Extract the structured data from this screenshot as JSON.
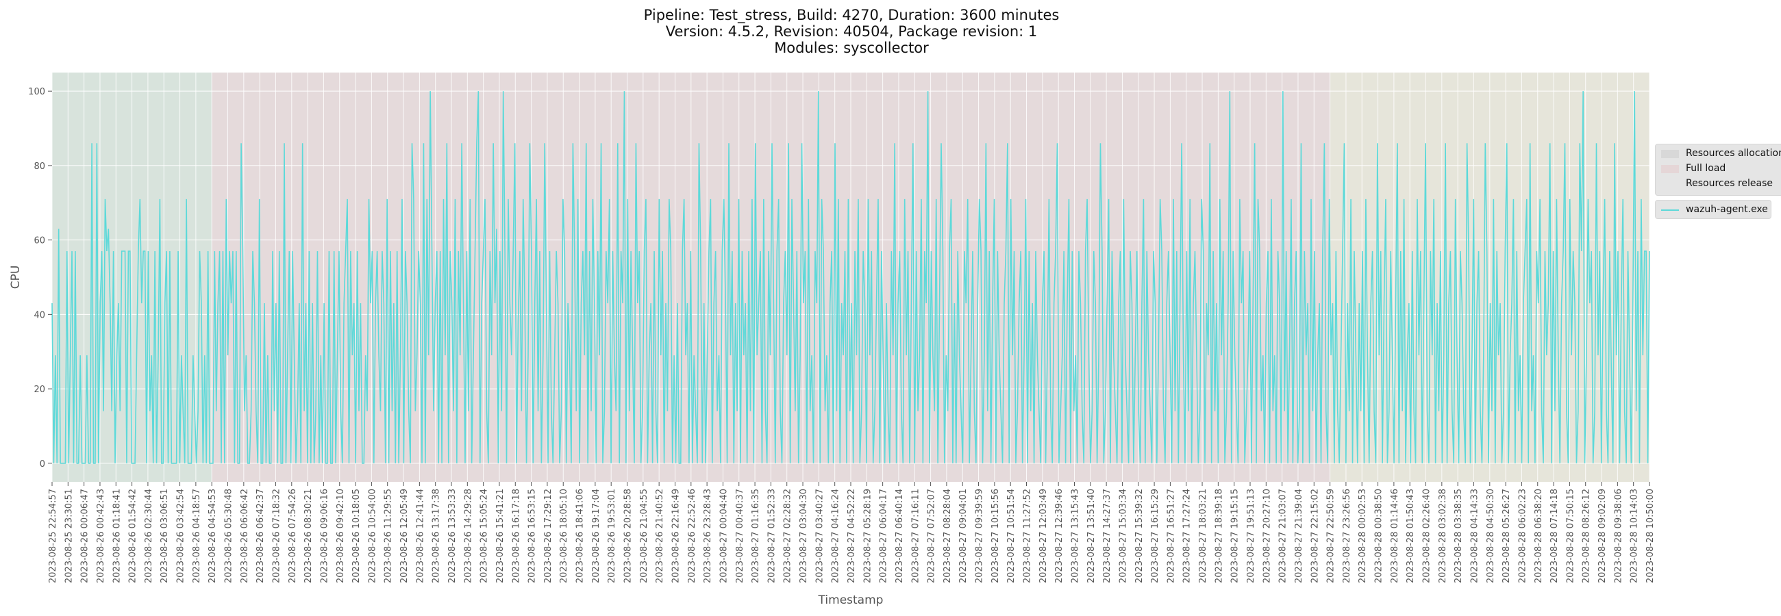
{
  "chart_data": {
    "type": "line",
    "title": "Pipeline: Test_stress, Build: 4270, Duration: 3600 minutes",
    "subtitle_lines": [
      "Version: 4.5.2, Revision: 40504, Package revision: 1",
      "Modules: syscollector"
    ],
    "xlabel": "Timestamp",
    "ylabel": "CPU",
    "ylim": [
      -5,
      105
    ],
    "y_ticks": [
      0,
      20,
      40,
      60,
      80,
      100
    ],
    "grid": true,
    "legend_placement": "right-outside",
    "x_tick_labels": [
      "2023-08-25 22:54:57",
      "2023-08-25 23:30:51",
      "2023-08-26 00:06:47",
      "2023-08-26 00:42:43",
      "2023-08-26 01:18:41",
      "2023-08-26 01:54:42",
      "2023-08-26 02:30:44",
      "2023-08-26 03:06:51",
      "2023-08-26 03:42:54",
      "2023-08-26 04:18:57",
      "2023-08-26 04:54:53",
      "2023-08-26 05:30:48",
      "2023-08-26 06:06:42",
      "2023-08-26 06:42:37",
      "2023-08-26 07:18:32",
      "2023-08-26 07:54:26",
      "2023-08-26 08:30:21",
      "2023-08-26 09:06:16",
      "2023-08-26 09:42:10",
      "2023-08-26 10:18:05",
      "2023-08-26 10:54:00",
      "2023-08-26 11:29:55",
      "2023-08-26 12:05:49",
      "2023-08-26 12:41:44",
      "2023-08-26 13:17:38",
      "2023-08-26 13:53:33",
      "2023-08-26 14:29:28",
      "2023-08-26 15:05:24",
      "2023-08-26 15:41:21",
      "2023-08-26 16:17:18",
      "2023-08-26 16:53:15",
      "2023-08-26 17:29:12",
      "2023-08-26 18:05:10",
      "2023-08-26 18:41:06",
      "2023-08-26 19:17:04",
      "2023-08-26 19:53:01",
      "2023-08-26 20:28:58",
      "2023-08-26 21:04:55",
      "2023-08-26 21:40:52",
      "2023-08-26 22:16:49",
      "2023-08-26 22:52:46",
      "2023-08-26 23:28:43",
      "2023-08-27 00:04:40",
      "2023-08-27 00:40:37",
      "2023-08-27 01:16:35",
      "2023-08-27 01:52:33",
      "2023-08-27 02:28:32",
      "2023-08-27 03:04:30",
      "2023-08-27 03:40:27",
      "2023-08-27 04:16:24",
      "2023-08-27 04:52:22",
      "2023-08-27 05:28:19",
      "2023-08-27 06:04:17",
      "2023-08-27 06:40:14",
      "2023-08-27 07:16:11",
      "2023-08-27 07:52:07",
      "2023-08-27 08:28:04",
      "2023-08-27 09:04:01",
      "2023-08-27 09:39:59",
      "2023-08-27 10:15:56",
      "2023-08-27 10:51:54",
      "2023-08-27 11:27:52",
      "2023-08-27 12:03:49",
      "2023-08-27 12:39:46",
      "2023-08-27 13:15:43",
      "2023-08-27 13:51:40",
      "2023-08-27 14:27:37",
      "2023-08-27 15:03:34",
      "2023-08-27 15:39:32",
      "2023-08-27 16:15:29",
      "2023-08-27 16:51:27",
      "2023-08-27 17:27:24",
      "2023-08-27 18:03:21",
      "2023-08-27 18:39:18",
      "2023-08-27 19:15:15",
      "2023-08-27 19:51:13",
      "2023-08-27 20:27:10",
      "2023-08-27 21:03:07",
      "2023-08-27 21:39:04",
      "2023-08-27 22:15:02",
      "2023-08-27 22:50:59",
      "2023-08-27 23:26:56",
      "2023-08-28 00:02:53",
      "2023-08-28 00:38:50",
      "2023-08-28 01:14:46",
      "2023-08-28 01:50:43",
      "2023-08-28 02:26:40",
      "2023-08-28 03:02:38",
      "2023-08-28 03:38:35",
      "2023-08-28 04:14:33",
      "2023-08-28 04:50:30",
      "2023-08-28 05:26:27",
      "2023-08-28 06:02:23",
      "2023-08-28 06:38:20",
      "2023-08-28 07:14:18",
      "2023-08-28 07:50:15",
      "2023-08-28 08:26:12",
      "2023-08-28 09:02:09",
      "2023-08-28 09:38:06",
      "2023-08-28 10:14:03",
      "2023-08-28 10:50:00"
    ],
    "regions": [
      {
        "name": "Resources allocation",
        "start": "2023-08-25 22:54:57",
        "end": "2023-08-26 04:54:53",
        "color": "#d8e3dc"
      },
      {
        "name": "Full load",
        "start": "2023-08-26 04:54:53",
        "end": "2023-08-27 22:50:59",
        "color": "#e5dadb"
      },
      {
        "name": "Resources release",
        "start": "2023-08-27 22:50:59",
        "end": "2023-08-28 10:50:00",
        "color": "#e6e5da"
      }
    ],
    "series": [
      {
        "name": "wazuh-agent.exe",
        "color": "#5dd9d9",
        "y": [
          43,
          0,
          29,
          0,
          63,
          0,
          0,
          0,
          0,
          57,
          0,
          29,
          57,
          0,
          57,
          0,
          0,
          29,
          0,
          0,
          0,
          29,
          0,
          0,
          86,
          0,
          0,
          86,
          0,
          43,
          57,
          14,
          71,
          57,
          63,
          43,
          14,
          57,
          0,
          29,
          43,
          14,
          57,
          57,
          57,
          0,
          57,
          57,
          0,
          0,
          0,
          29,
          57,
          71,
          43,
          57,
          57,
          0,
          57,
          14,
          29,
          0,
          57,
          0,
          29,
          71,
          0,
          0,
          43,
          57,
          0,
          57,
          0,
          0,
          0,
          0,
          57,
          0,
          29,
          14,
          0,
          71,
          0,
          0,
          0,
          29,
          14,
          0,
          14,
          57,
          43,
          0,
          29,
          0,
          57,
          0,
          0,
          0,
          57,
          14,
          43,
          57,
          0,
          57,
          0,
          71,
          29,
          57,
          43,
          57,
          0,
          57,
          0,
          0,
          86,
          57,
          14,
          29,
          0,
          0,
          14,
          57,
          43,
          14,
          0,
          71,
          0,
          0,
          43,
          0,
          29,
          0,
          0,
          57,
          14,
          43,
          0,
          57,
          0,
          0,
          86,
          0,
          29,
          57,
          0,
          57,
          29,
          0,
          14,
          43,
          0,
          86,
          14,
          43,
          0,
          57,
          0,
          43,
          0,
          14,
          57,
          0,
          29,
          0,
          43,
          0,
          0,
          57,
          0,
          0,
          57,
          0,
          29,
          57,
          14,
          0,
          43,
          57,
          71,
          0,
          57,
          29,
          43,
          0,
          57,
          14,
          43,
          0,
          0,
          29,
          14,
          71,
          43,
          57,
          0,
          43,
          57,
          29,
          14,
          57,
          43,
          0,
          71,
          0,
          57,
          14,
          43,
          0,
          57,
          0,
          29,
          71,
          0,
          57,
          43,
          14,
          0,
          86,
          71,
          14,
          29,
          57,
          43,
          0,
          86,
          0,
          71,
          29,
          100,
          57,
          14,
          43,
          57,
          0,
          57,
          0,
          71,
          29,
          86,
          0,
          57,
          43,
          14,
          71,
          0,
          57,
          29,
          86,
          43,
          0,
          57,
          14,
          71,
          0,
          29,
          57,
          86,
          100,
          0,
          43,
          57,
          71,
          14,
          0,
          57,
          29,
          86,
          43,
          63,
          0,
          57,
          14,
          100,
          57,
          0,
          71,
          43,
          29,
          57,
          86,
          0,
          38,
          57,
          14,
          71,
          43,
          0,
          29,
          86,
          57,
          0,
          43,
          71,
          14,
          57,
          0,
          29,
          86,
          43,
          0,
          57,
          14,
          0,
          29,
          57,
          43,
          0,
          14,
          71,
          57,
          0,
          43,
          29,
          0,
          86,
          57,
          14,
          71,
          0,
          43,
          57,
          29,
          86,
          0,
          57,
          14,
          71,
          43,
          0,
          57,
          29,
          86,
          0,
          14,
          57,
          43,
          71,
          0,
          57,
          29,
          14,
          86,
          0,
          57,
          43,
          100,
          0,
          71,
          14,
          57,
          29,
          0,
          86,
          43,
          57,
          0,
          14,
          57,
          71,
          0,
          29,
          43,
          0,
          57,
          14,
          0,
          71,
          29,
          57,
          0,
          43,
          14,
          71,
          57,
          0,
          29,
          0,
          43,
          0,
          0,
          57,
          71,
          29,
          43,
          0,
          57,
          0,
          29,
          14,
          0,
          86,
          57,
          0,
          43,
          0,
          29,
          57,
          71,
          0,
          43,
          57,
          14,
          29,
          0,
          57,
          71,
          43,
          0,
          86,
          29,
          57,
          0,
          43,
          14,
          71,
          0,
          57,
          29,
          43,
          0,
          57,
          14,
          71,
          0,
          86,
          29,
          43,
          57,
          0,
          71,
          14,
          0,
          57,
          29,
          86,
          43,
          0,
          57,
          71,
          14,
          0,
          43,
          57,
          29,
          86,
          0,
          71,
          43,
          14,
          57,
          0,
          29,
          86,
          43,
          57,
          0,
          71,
          14,
          29,
          0,
          57,
          43,
          100,
          0,
          71,
          57,
          14,
          29,
          0,
          43,
          57,
          0,
          86,
          14,
          71,
          0,
          43,
          29,
          57,
          0,
          71,
          14,
          43,
          0,
          57,
          29,
          71,
          0,
          14,
          57,
          43,
          0,
          71,
          29,
          57,
          0,
          14,
          43,
          71,
          0,
          57,
          29,
          0,
          43,
          14,
          0,
          57,
          29,
          86,
          0,
          43,
          57,
          14,
          0,
          71,
          29,
          57,
          0,
          43,
          86,
          0,
          57,
          14,
          29,
          71,
          0,
          57,
          43,
          100,
          0,
          57,
          29,
          14,
          71,
          0,
          43,
          86,
          57,
          0,
          29,
          14,
          57,
          71,
          0,
          43,
          0,
          57,
          29,
          14,
          0,
          57,
          43,
          71,
          0,
          29,
          57,
          14,
          0,
          43,
          71,
          57,
          0,
          29,
          86,
          14,
          57,
          0,
          43,
          71,
          0,
          57,
          29,
          14,
          0,
          43,
          57,
          86,
          0,
          71,
          29,
          57,
          0,
          14,
          43,
          57,
          0,
          29,
          71,
          0,
          57,
          14,
          43,
          0,
          57,
          29,
          14,
          0,
          43,
          57,
          0,
          29,
          71,
          14,
          0,
          43,
          57,
          86,
          0,
          14,
          29,
          57,
          0,
          43,
          71,
          0,
          57,
          14,
          29,
          0,
          57,
          43,
          14,
          0,
          57,
          71,
          29,
          0,
          14,
          57,
          43,
          0,
          29,
          86,
          57,
          0,
          14,
          43,
          71,
          0,
          57,
          29,
          14,
          0,
          43,
          57,
          0,
          71,
          29,
          14,
          0,
          57,
          43,
          0,
          29,
          57,
          14,
          0,
          43,
          71,
          0,
          57,
          29,
          14,
          0,
          57,
          43,
          0,
          29,
          71,
          57,
          14,
          0,
          43,
          57,
          29,
          0,
          71,
          14,
          57,
          0,
          43,
          86,
          29,
          0,
          57,
          14,
          71,
          0,
          43,
          57,
          29,
          0,
          14,
          71,
          57,
          0,
          43,
          29,
          86,
          0,
          57,
          14,
          43,
          0,
          71,
          29,
          57,
          0,
          14,
          43,
          100,
          0,
          57,
          29,
          14,
          0,
          71,
          43,
          57,
          0,
          14,
          29,
          57,
          0,
          43,
          86,
          0,
          71,
          57,
          14,
          29,
          0,
          43,
          57,
          0,
          71,
          14,
          29,
          0,
          57,
          43,
          0,
          100,
          14,
          57,
          0,
          29,
          71,
          0,
          43,
          57,
          0,
          14,
          86,
          0,
          57,
          29,
          43,
          0,
          71,
          14,
          57,
          0,
          29,
          43,
          0,
          57,
          86,
          14,
          0,
          71,
          29,
          43,
          0,
          57,
          14,
          0,
          29,
          57,
          86,
          0,
          43,
          14,
          71,
          0,
          57,
          29,
          0,
          43,
          14,
          57,
          0,
          71,
          29,
          0,
          43,
          57,
          14,
          0,
          86,
          29,
          57,
          0,
          43,
          71,
          0,
          14,
          57,
          29,
          0,
          43,
          86,
          0,
          57,
          14,
          71,
          0,
          29,
          43,
          0,
          57,
          14,
          0,
          71,
          29,
          57,
          0,
          43,
          86,
          14,
          0,
          57,
          29,
          71,
          0,
          43,
          14,
          57,
          0,
          29,
          86,
          0,
          43,
          57,
          14,
          0,
          71,
          29,
          0,
          57,
          43,
          14,
          0,
          86,
          57,
          0,
          29,
          71,
          0,
          43,
          57,
          14,
          0,
          29,
          86,
          57,
          0,
          43,
          14,
          71,
          0,
          57,
          29,
          43,
          0,
          14,
          57,
          86,
          0,
          29,
          43,
          71,
          0,
          57,
          14,
          29,
          0,
          43,
          57,
          71,
          0,
          86,
          14,
          29,
          0,
          57,
          43,
          71,
          14,
          0,
          57,
          29,
          43,
          86,
          0,
          57,
          14,
          71,
          29,
          0,
          43,
          57,
          86,
          14,
          0,
          71,
          29,
          57,
          43,
          0,
          14,
          86,
          57,
          100,
          0,
          29,
          71,
          43,
          57,
          0,
          14,
          86,
          29,
          57,
          0,
          43,
          71,
          14,
          0,
          57,
          25,
          0,
          86,
          29,
          57,
          0,
          43,
          71,
          14,
          0,
          57,
          29,
          0,
          43,
          100,
          14,
          57,
          0,
          71,
          29,
          57,
          57,
          0,
          57
        ]
      }
    ]
  },
  "legend": {
    "regions": [
      "Resources allocation",
      "Full load",
      "Resources release"
    ],
    "series": [
      "wazuh-agent.exe"
    ]
  }
}
